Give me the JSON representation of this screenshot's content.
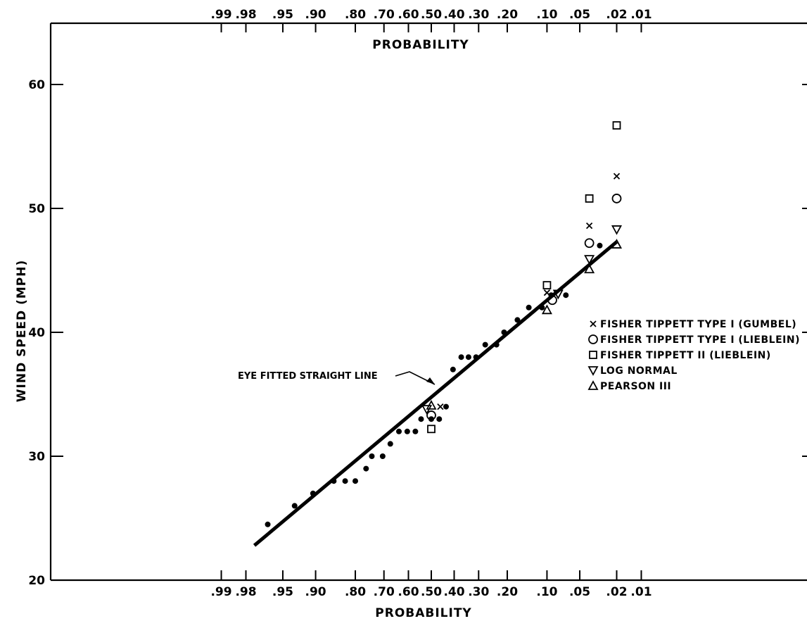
{
  "chart_data": {
    "type": "scatter",
    "title": "",
    "xlabel": "PROBABILITY",
    "x_top_label": "PROBABILITY",
    "ylabel": "WIND SPEED (MPH)",
    "ylim": [
      20,
      65
    ],
    "y_ticks": [
      20,
      30,
      40,
      50,
      60
    ],
    "x_scale": "normal-probability (reversed exceedance)",
    "x_ticks": [
      {
        "value": 0.99,
        "label": ".99"
      },
      {
        "value": 0.98,
        "label": ".98"
      },
      {
        "value": 0.95,
        "label": ".95"
      },
      {
        "value": 0.9,
        "label": ".90"
      },
      {
        "value": 0.8,
        "label": ".80"
      },
      {
        "value": 0.7,
        "label": ".70"
      },
      {
        "value": 0.6,
        "label": ".60"
      },
      {
        "value": 0.5,
        "label": ".50"
      },
      {
        "value": 0.4,
        "label": ".40"
      },
      {
        "value": 0.3,
        "label": ".30"
      },
      {
        "value": 0.2,
        "label": ".20"
      },
      {
        "value": 0.1,
        "label": ".10"
      },
      {
        "value": 0.05,
        "label": ".05"
      },
      {
        "value": 0.02,
        "label": ".02"
      },
      {
        "value": 0.01,
        "label": ".01"
      }
    ],
    "grid": false,
    "legend_position": "right",
    "observed": [
      {
        "p": 0.965,
        "y": 24.5
      },
      {
        "p": 0.935,
        "y": 26.0
      },
      {
        "p": 0.905,
        "y": 27.0
      },
      {
        "p": 0.86,
        "y": 28.0
      },
      {
        "p": 0.83,
        "y": 28.0
      },
      {
        "p": 0.8,
        "y": 28.0
      },
      {
        "p": 0.765,
        "y": 29.0
      },
      {
        "p": 0.745,
        "y": 30.0
      },
      {
        "p": 0.705,
        "y": 30.0
      },
      {
        "p": 0.675,
        "y": 31.0
      },
      {
        "p": 0.64,
        "y": 32.0
      },
      {
        "p": 0.605,
        "y": 32.0
      },
      {
        "p": 0.57,
        "y": 32.0
      },
      {
        "p": 0.545,
        "y": 33.0
      },
      {
        "p": 0.5,
        "y": 33.0
      },
      {
        "p": 0.465,
        "y": 33.0
      },
      {
        "p": 0.435,
        "y": 34.0
      },
      {
        "p": 0.405,
        "y": 37.0
      },
      {
        "p": 0.37,
        "y": 38.0
      },
      {
        "p": 0.34,
        "y": 38.0
      },
      {
        "p": 0.31,
        "y": 38.0
      },
      {
        "p": 0.275,
        "y": 39.0
      },
      {
        "p": 0.235,
        "y": 39.0
      },
      {
        "p": 0.21,
        "y": 40.0
      },
      {
        "p": 0.17,
        "y": 41.0
      },
      {
        "p": 0.14,
        "y": 42.0
      },
      {
        "p": 0.11,
        "y": 42.0
      },
      {
        "p": 0.092,
        "y": 43.0
      },
      {
        "p": 0.068,
        "y": 43.0
      },
      {
        "p": 0.031,
        "y": 47.0
      }
    ],
    "fitted_line": {
      "label": "EYE FITTED STRAIGHT LINE",
      "from": {
        "p": 0.975,
        "y": 22.8
      },
      "to": {
        "p": 0.02,
        "y": 47.3
      }
    },
    "series": [
      {
        "name": "FISHER TIPPETT TYPE I (GUMBEL)",
        "marker": "x",
        "points": [
          {
            "p": 0.46,
            "y": 34.0
          },
          {
            "p": 0.1,
            "y": 43.2
          },
          {
            "p": 0.04,
            "y": 48.6
          },
          {
            "p": 0.02,
            "y": 52.6
          }
        ]
      },
      {
        "name": "FISHER TIPPETT TYPE I (LIEBLEIN)",
        "marker": "circle",
        "points": [
          {
            "p": 0.5,
            "y": 33.3
          },
          {
            "p": 0.09,
            "y": 42.6
          },
          {
            "p": 0.04,
            "y": 47.2
          },
          {
            "p": 0.02,
            "y": 50.8
          }
        ]
      },
      {
        "name": "FISHER TIPPETT II (LIEBLEIN)",
        "marker": "square",
        "points": [
          {
            "p": 0.5,
            "y": 32.2
          },
          {
            "p": 0.1,
            "y": 43.8
          },
          {
            "p": 0.04,
            "y": 50.8
          },
          {
            "p": 0.02,
            "y": 56.7
          }
        ]
      },
      {
        "name": "LOG NORMAL",
        "marker": "triangle-down",
        "points": [
          {
            "p": 0.52,
            "y": 33.8
          },
          {
            "p": 0.08,
            "y": 43.1
          },
          {
            "p": 0.04,
            "y": 45.9
          },
          {
            "p": 0.02,
            "y": 48.3
          }
        ]
      },
      {
        "name": "PEARSON III",
        "marker": "triangle-up",
        "points": [
          {
            "p": 0.5,
            "y": 34.1
          },
          {
            "p": 0.1,
            "y": 41.8
          },
          {
            "p": 0.04,
            "y": 45.1
          },
          {
            "p": 0.02,
            "y": 47.1
          }
        ]
      }
    ]
  }
}
